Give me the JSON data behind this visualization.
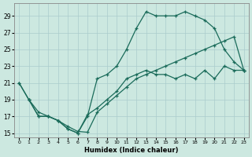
{
  "xlabel": "Humidex (Indice chaleur)",
  "xlim": [
    -0.5,
    23.5
  ],
  "ylim": [
    14.5,
    30.5
  ],
  "yticks": [
    15,
    17,
    19,
    21,
    23,
    25,
    27,
    29
  ],
  "xticks": [
    0,
    1,
    2,
    3,
    4,
    5,
    6,
    7,
    8,
    9,
    10,
    11,
    12,
    13,
    14,
    15,
    16,
    17,
    18,
    19,
    20,
    21,
    22,
    23
  ],
  "bg_color": "#cce8e0",
  "grid_color": "#aacccc",
  "line_color": "#1a6b5a",
  "line1_x": [
    0,
    1,
    2,
    3,
    4,
    5,
    6,
    7,
    8,
    9,
    10,
    11,
    12,
    13,
    14,
    15,
    16,
    17,
    18,
    19,
    20,
    21,
    22,
    23
  ],
  "line1_y": [
    21,
    19,
    17,
    17,
    16.5,
    15.5,
    15,
    17,
    21.5,
    22,
    23,
    25,
    27.5,
    29.5,
    29,
    29,
    29,
    29.5,
    29,
    28.5,
    27.5,
    25,
    23.5,
    22.5
  ],
  "line2_x": [
    0,
    1,
    2,
    3,
    4,
    5,
    6,
    7,
    8,
    9,
    10,
    11,
    12,
    13,
    14,
    15,
    16,
    17,
    18,
    19,
    20,
    21,
    22,
    23
  ],
  "line2_y": [
    21,
    19,
    17,
    17,
    16.5,
    15.5,
    15,
    17.2,
    18,
    19,
    20,
    21.5,
    22,
    22.5,
    22,
    22,
    21.5,
    22,
    21.5,
    22.5,
    21.5,
    23,
    22.5,
    22.5
  ],
  "line3_x": [
    1,
    2,
    3,
    4,
    5,
    6,
    7,
    8,
    9,
    10,
    11,
    12,
    13,
    14,
    15,
    16,
    17,
    18,
    19,
    20,
    21,
    22,
    23
  ],
  "line3_y": [
    19,
    17.5,
    17,
    16.5,
    15.8,
    15.2,
    15.1,
    17.5,
    18.5,
    19.5,
    20.5,
    21.5,
    22,
    22.5,
    23,
    23.5,
    24,
    24.5,
    25,
    25.5,
    26,
    26.5,
    22.5
  ]
}
